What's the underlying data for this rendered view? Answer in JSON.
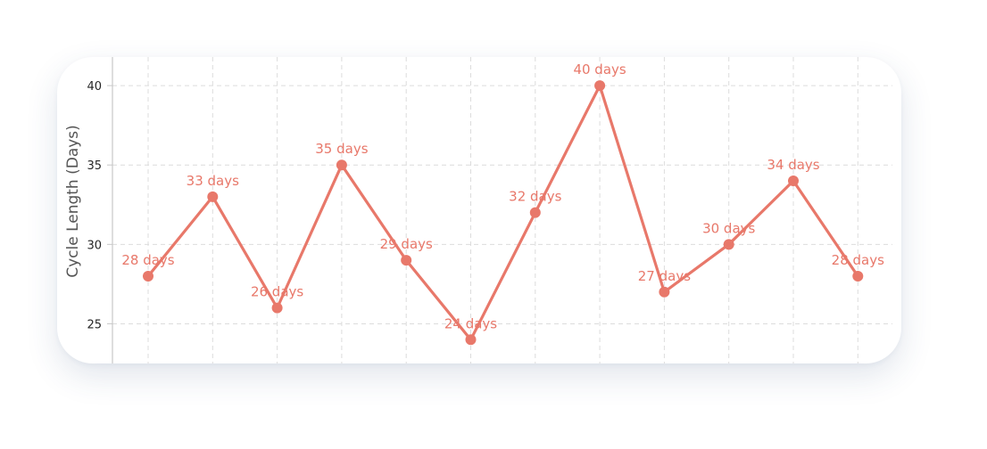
{
  "chart_data": {
    "type": "line",
    "title": "",
    "xlabel": "",
    "ylabel": "Cycle Length (Days)",
    "y": [
      28,
      33,
      26,
      35,
      29,
      24,
      32,
      40,
      27,
      30,
      34,
      28
    ],
    "data_labels": [
      "28 days",
      "33 days",
      "26 days",
      "35 days",
      "29 days",
      "24 days",
      "32 days",
      "40 days",
      "27 days",
      "30 days",
      "34 days",
      "28 days"
    ],
    "yticks": [
      25,
      30,
      35,
      40
    ],
    "ylim": [
      22.5,
      41.8
    ],
    "grid": true,
    "legend": "none",
    "color": "#E8786A"
  }
}
